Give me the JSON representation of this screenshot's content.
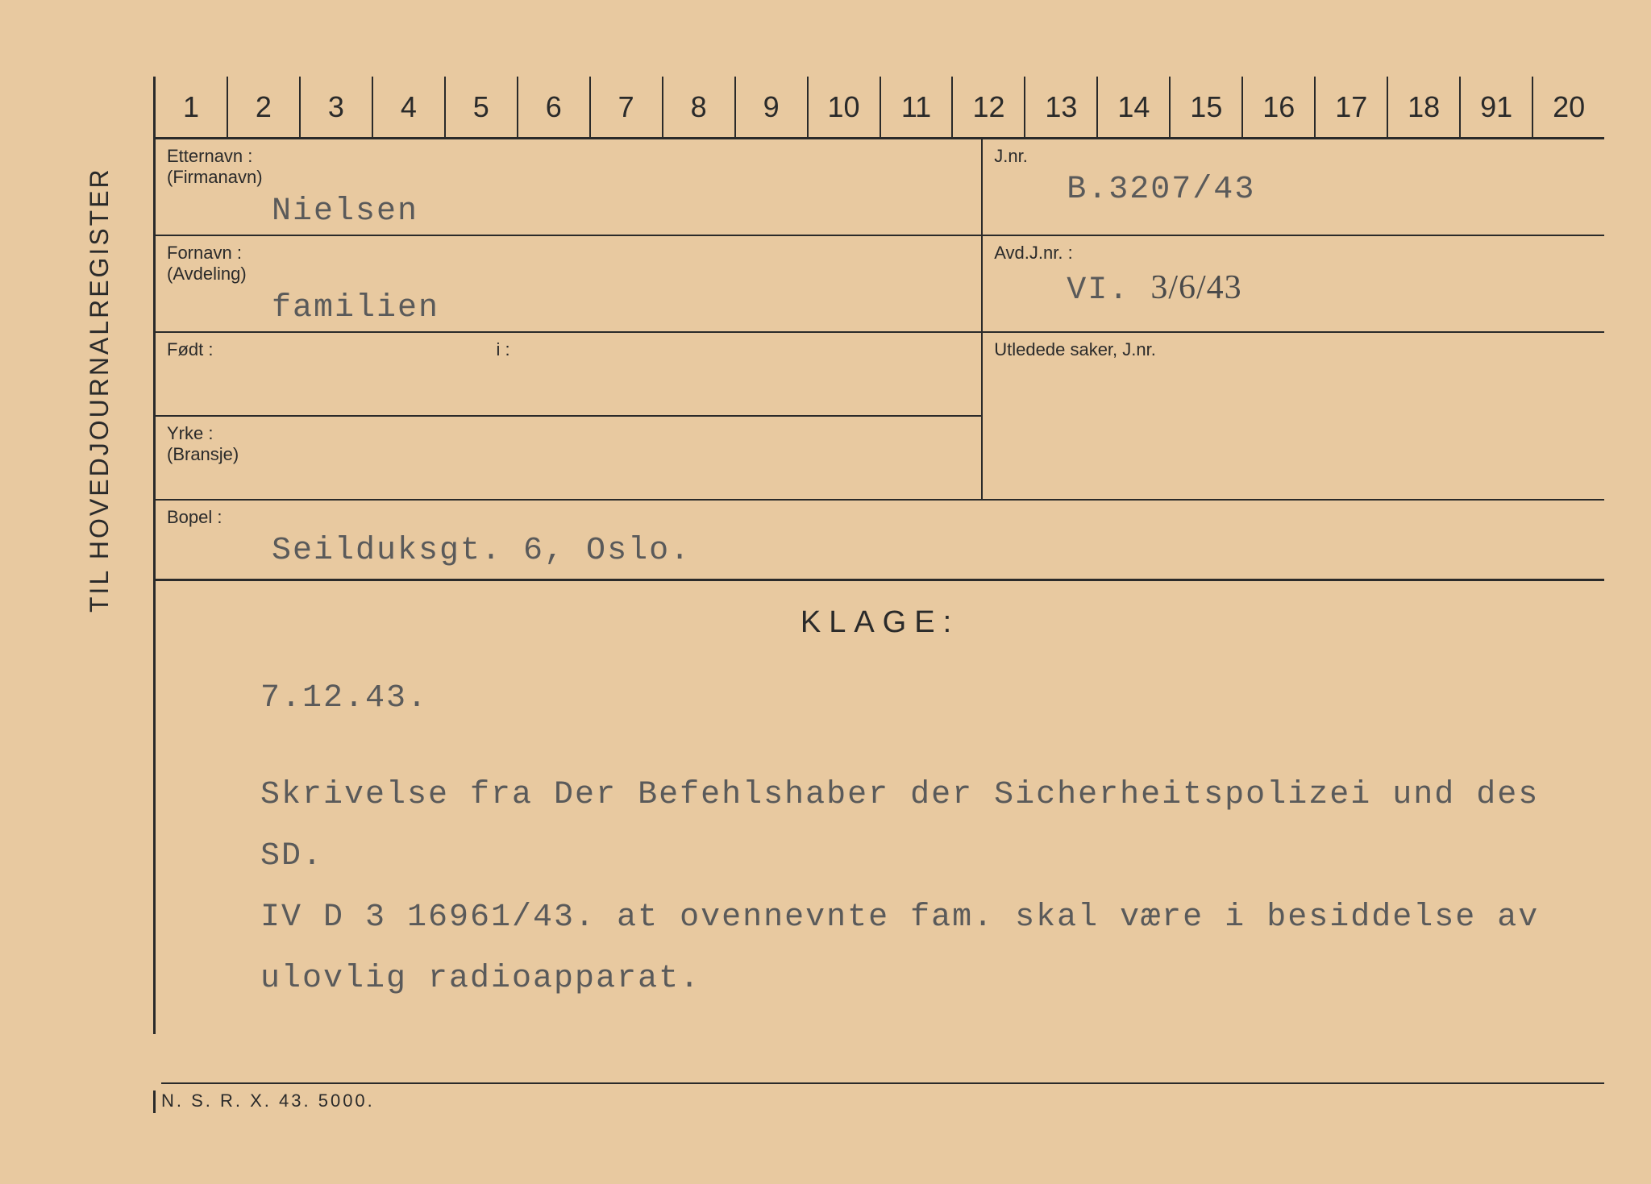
{
  "vertical_label": "TIL HOVEDJOURNALREGISTER",
  "number_row": [
    "1",
    "2",
    "3",
    "4",
    "5",
    "6",
    "7",
    "8",
    "9",
    "10",
    "11",
    "12",
    "13",
    "14",
    "15",
    "16",
    "17",
    "18",
    "91",
    "20"
  ],
  "fields": {
    "etternavn": {
      "label": "Etternavn :",
      "sublabel": "(Firmanavn)",
      "value": "Nielsen"
    },
    "fornavn": {
      "label": "Fornavn :",
      "sublabel": "(Avdeling)",
      "value": "familien"
    },
    "fodt": {
      "label": "Født :",
      "i_label": "i :",
      "value": "",
      "i_value": ""
    },
    "yrke": {
      "label": "Yrke :",
      "sublabel": "(Bransje)",
      "value": ""
    },
    "bopel": {
      "label": "Bopel :",
      "value": "Seilduksgt. 6, Oslo."
    },
    "jnr": {
      "label": "J.nr.",
      "value": "B.3207/43"
    },
    "avdjnr": {
      "label": "Avd.J.nr. :",
      "value_prefix": "VI.",
      "value_hand": "3/6/43"
    },
    "utledede": {
      "label": "Utledede saker, J.nr.",
      "value": ""
    }
  },
  "klage": {
    "heading": "KLAGE:",
    "date": "7.12.43.",
    "body_lines": [
      "Skrivelse fra Der Befehlshaber der Sicherheitspolizei und des SD.",
      "IV D 3 16961/43.  at ovennevnte fam. skal være i besiddelse av",
      "ulovlig radioapparat."
    ]
  },
  "footer": "N. S. R.   X.   43.   5000.",
  "colors": {
    "paper": "#e8c9a0",
    "ink": "#2a2a2a",
    "type": "#5a5a5a"
  }
}
